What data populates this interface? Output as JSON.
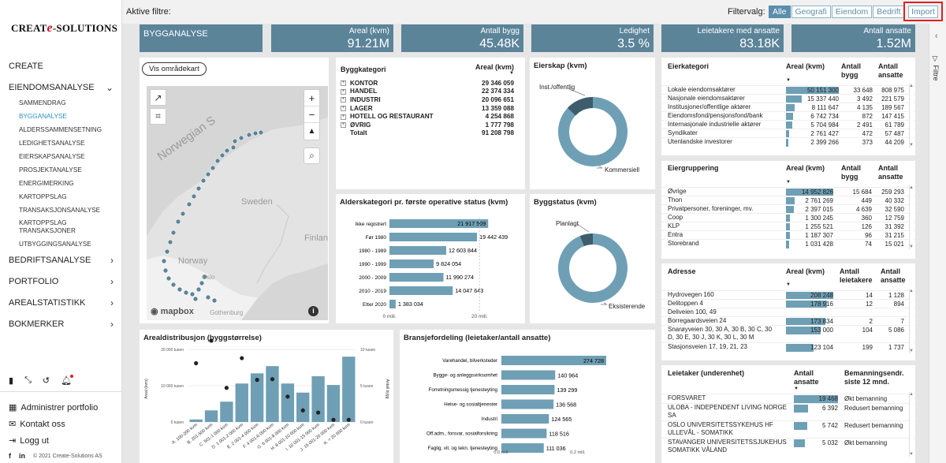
{
  "brand": {
    "pre": "CREAT",
    "e": "e",
    "post": "-SOLUTIONS"
  },
  "nav": {
    "create": "CREATE",
    "eiendom": "EIENDOMSANALYSE",
    "subs": [
      "SAMMENDRAG",
      "BYGGANALYSE",
      "ALDERSSAMMENSETNING",
      "LEDIGHETSANALYSE",
      "EIERSKAPSANALYSE",
      "PROSJEKTANALYSE",
      "ENERGIMERKING",
      "KARTOPPSLAG",
      "TRANSAKSJONSANALYSE",
      "KARTOPPSLAG TRANSAKSJONER",
      "UTBYGGINGSANALYSE"
    ],
    "bedrift": "BEDRIFTSANALYSE",
    "portfolio": "PORTFOLIO",
    "areal": "AREALSTATISTIKK",
    "bokmerker": "BOKMERKER"
  },
  "sidebar_links": {
    "admin": "Administrer portfolio",
    "kontakt": "Kontakt oss",
    "logg": "Logg ut"
  },
  "footer": {
    "fb": "f",
    "li": "in",
    "copy": "© 2021 Create-Solutions AS"
  },
  "topbar": {
    "aktive": "Aktive filtre:",
    "filtervalg": "Filtervalg:",
    "filters": [
      "Alle",
      "Geografi",
      "Eiendom",
      "Bedrift"
    ],
    "import": "Import"
  },
  "rpanel": {
    "label": "Filtre"
  },
  "kpis": {
    "title": "BYGGANALYSE",
    "items": [
      {
        "label": "Areal (kvm)",
        "value": "91.21M"
      },
      {
        "label": "Antall bygg",
        "value": "45.48K"
      },
      {
        "label": "Ledighet",
        "value": "3.5 %"
      },
      {
        "label": "Leietakere med ansatte",
        "value": "83.18K"
      },
      {
        "label": "Antall ansatte",
        "value": "1.52M"
      }
    ]
  },
  "map": {
    "button": "Vis områdekart",
    "labels": [
      "Norwegian S",
      "Sweden",
      "Finlan",
      "Norway",
      "Oslo",
      "Gothenburg"
    ],
    "logo": "mapbox"
  },
  "byggkategori": {
    "h1": "Byggkategori",
    "h2": "Areal (kvm)",
    "rows": [
      [
        "KONTOR",
        "29 346 059"
      ],
      [
        "HANDEL",
        "22 374 334"
      ],
      [
        "INDUSTRI",
        "20 096 651"
      ],
      [
        "LAGER",
        "13 359 088"
      ],
      [
        "HOTELL OG RESTAURANT",
        "4 254 868"
      ],
      [
        "ØVRIG",
        "1 777 798"
      ]
    ],
    "total": [
      "Totalt",
      "91 208 798"
    ]
  },
  "eierskap": {
    "title": "Eierskap (kvm)",
    "labels": [
      "Inst./offentlig",
      "Kommersiell"
    ],
    "share": 0.13
  },
  "alder": {
    "title": "Alderskategori pr. første operative status (kvm)",
    "cats": [
      "Ikke registrert",
      "Før 1980",
      "1980 - 1989",
      "1990 - 1999",
      "2000 - 2009",
      "2010 - 2019",
      "Etter 2020"
    ],
    "values": [
      21917509,
      19442439,
      12603844,
      9824054,
      11990274,
      14047643,
      1383034
    ],
    "labels": [
      "21 917 509",
      "19 442 439",
      "12 603 844",
      "9 824 054",
      "11 990 274",
      "14 047 643",
      "1 383 034"
    ],
    "ticks": [
      "0 mill.",
      "20 mill."
    ]
  },
  "byggstatus": {
    "title": "Byggstatus (kvm)",
    "labels": [
      "Planlagt",
      "Eksisterende"
    ],
    "share": 0.06
  },
  "eierkategori": {
    "h": [
      "Eierkategori",
      "Areal (kvm)",
      "Antall bygg",
      "Antall ansatte"
    ],
    "rows": [
      [
        "Lokale eiendomsaktører",
        "50 151 300",
        50151300,
        "33 648",
        "808 975"
      ],
      [
        "Nasjonale eiendomsaktører",
        "15 337 440",
        15337440,
        "3 492",
        "221 579"
      ],
      [
        "Institusjoner/offentlige aktører",
        "8 111 647",
        8111647,
        "4 135",
        "189 567"
      ],
      [
        "Eiendomsfond/pensjonsfond/bank",
        "6 742 734",
        6742734,
        "872",
        "147 415"
      ],
      [
        "Internasjonale industrielle aktører",
        "5 704 984",
        5704984,
        "2 491",
        "61 789"
      ],
      [
        "Syndikater",
        "2 761 427",
        2761427,
        "472",
        "57 487"
      ],
      [
        "Utenlandske investorer",
        "2 399 266",
        2399266,
        "373",
        "44 209"
      ]
    ]
  },
  "eiergruppering": {
    "h": [
      "Eiergruppering",
      "Areal (kvm)",
      "Antall bygg",
      "Antall ansatte"
    ],
    "rows": [
      [
        "Øvrige",
        "14 952 826",
        14952826,
        "15 684",
        "259 293"
      ],
      [
        "Thon",
        "2 761 269",
        2761269,
        "449",
        "40 332"
      ],
      [
        "Privatpersoner, foreninger, mv.",
        "2 397 015",
        2397015,
        "4 639",
        "32 590"
      ],
      [
        "Coop",
        "1 300 245",
        1300245,
        "360",
        "12 759"
      ],
      [
        "KLP",
        "1 255 521",
        1255521,
        "126",
        "31 392"
      ],
      [
        "Entra",
        "1 187 307",
        1187307,
        "96",
        "31 215"
      ],
      [
        "Storebrand",
        "1 031 428",
        1031428,
        "74",
        "15 021"
      ]
    ]
  },
  "adresse": {
    "h": [
      "Adresse",
      "Areal (kvm)",
      "Antall leietakere",
      "Antall ansatte"
    ],
    "rows": [
      [
        "Hydrovegen 160",
        "208 248",
        208248,
        "14",
        "1 128"
      ],
      [
        "Delitoppen 4",
        "178 916",
        178916,
        "12",
        "894"
      ],
      [
        "Deliveien 100, 49",
        "",
        "",
        "",
        ""
      ],
      [
        "Borregaardsveien 24",
        "173 834",
        173834,
        "2",
        "7"
      ],
      [
        "Snarøyveien 30, 30 A, 30 B, 30 C, 30 D, 30 E, 30 J, 30 K, 30 L, 30 M",
        "153 000",
        153000,
        "104",
        "5 086"
      ],
      [
        "Stasjonsveien 17, 19, 21, 23",
        "123 104",
        123104,
        "199",
        "1 737"
      ]
    ]
  },
  "areal": {
    "title": "Arealdistribusjon (byggstørrelse)",
    "ylabel": "Areal (kvm)",
    "y2label": "Antall bygg",
    "yticks": [
      "20 000 tusen",
      "10 000 tusen",
      "0 tusen"
    ],
    "y2ticks": [
      "10 tusen",
      "5 tusen",
      "0 tusen"
    ],
    "cats": [
      "A. 100-200 kvm",
      "B. 201-500 kvm",
      "C. 501-1 000 kvm",
      "D. 1 001-2 000 kvm",
      "E. 2 001-4 000 kvm",
      "F. 4 001-6 000 kvm",
      "G. 6 001-8 000 kvm",
      "H. 8 001-10 000 kvm",
      "I. 10 001-15 000 kvm",
      "J. 15 001-20 000 kvm",
      "K. > 20 000 kvm"
    ],
    "bars": [
      700,
      3200,
      5600,
      10600,
      13400,
      15400,
      10600,
      8100,
      12600,
      10200,
      18000
    ],
    "dots": [
      8100,
      11200,
      4700,
      8800,
      5800,
      5900,
      3500,
      1600,
      1300,
      300,
      300
    ]
  },
  "bransje": {
    "title": "Bransjefordeling (leietaker/antall ansatte)",
    "cats": [
      "Varehandel, bilverksteder",
      "Bygge- og anleggsvirksomhet",
      "Forretningsmessig tjenesteyting",
      "Helse- og sosialtjenester",
      "Industri",
      "Off.adm., forsvar, sosialforsikring",
      "Faglig, vit. og tekn. tjenesteyting"
    ],
    "values": [
      274728,
      140964,
      139299,
      136568,
      124565,
      118516,
      111036
    ],
    "labels": [
      "274 728",
      "140 964",
      "139 299",
      "136 568",
      "124 565",
      "118 516",
      "111 036"
    ],
    "ticks": [
      "0.0 mill.",
      "0.2 mill."
    ]
  },
  "leietaker": {
    "h": [
      "Leietaker (underenhet)",
      "Antall ansatte",
      "Bemanningsendr. siste 12 mnd."
    ],
    "rows": [
      [
        "FORSVARET",
        "19 468",
        19468,
        "Økt bemanning"
      ],
      [
        "ULOBA - INDEPENDENT LIVING NORGE SA",
        "6 392",
        6392,
        "Redusert bemanning"
      ],
      [
        "OSLO UNIVERSITETSSYKEHUS HF ULLEVÅL - SOMATIKK",
        "5 742",
        5742,
        "Redusert bemanning"
      ],
      [
        "STAVANGER UNIVERSITETSSJUKEHUS SOMATIKK VÅLAND",
        "5 032",
        5032,
        "Økt bemanning"
      ]
    ]
  }
}
